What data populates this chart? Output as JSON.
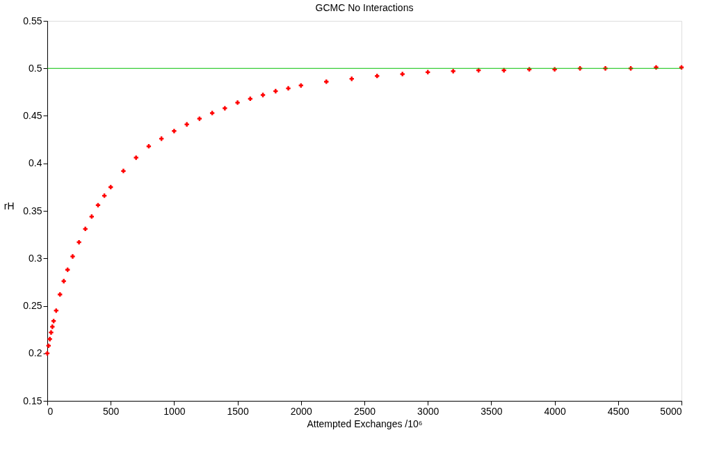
{
  "chart_data": {
    "type": "scatter",
    "title": "GCMC No Interactions",
    "xlabel": "Attempted Exchanges /10⁶",
    "ylabel": "rH",
    "x": [
      0,
      10,
      20,
      30,
      40,
      50,
      70,
      100,
      130,
      160,
      200,
      250,
      300,
      350,
      400,
      450,
      500,
      600,
      700,
      800,
      900,
      1000,
      1100,
      1200,
      1300,
      1400,
      1500,
      1600,
      1700,
      1800,
      1900,
      2000,
      2200,
      2400,
      2600,
      2800,
      3000,
      3200,
      3400,
      3600,
      3800,
      4000,
      4200,
      4400,
      4600,
      4800,
      5000
    ],
    "series": [
      {
        "color": "#ff0000",
        "values": [
          0.2,
          0.208,
          0.215,
          0.222,
          0.228,
          0.234,
          0.245,
          0.262,
          0.276,
          0.288,
          0.302,
          0.317,
          0.331,
          0.344,
          0.356,
          0.366,
          0.375,
          0.392,
          0.406,
          0.418,
          0.426,
          0.434,
          0.441,
          0.447,
          0.453,
          0.458,
          0.464,
          0.468,
          0.472,
          0.476,
          0.479,
          0.482,
          0.486,
          0.489,
          0.492,
          0.494,
          0.496,
          0.497,
          0.498,
          0.498,
          0.499,
          0.499,
          0.5,
          0.5,
          0.5,
          0.501,
          0.501
        ]
      }
    ],
    "marker": "cross",
    "xlim": [
      0,
      5000
    ],
    "xticks": [
      0,
      500,
      1000,
      1500,
      2000,
      2500,
      3000,
      3500,
      4000,
      4500,
      5000
    ],
    "ylim": [
      0.15,
      0.55
    ],
    "yticks": [
      0.15,
      0.2,
      0.25,
      0.3,
      0.35,
      0.4,
      0.45,
      0.5,
      0.55
    ],
    "grid": false,
    "legend": false,
    "ref_lines": [
      {
        "axis": "y",
        "value": 0.5,
        "color": "#00c000"
      }
    ]
  }
}
